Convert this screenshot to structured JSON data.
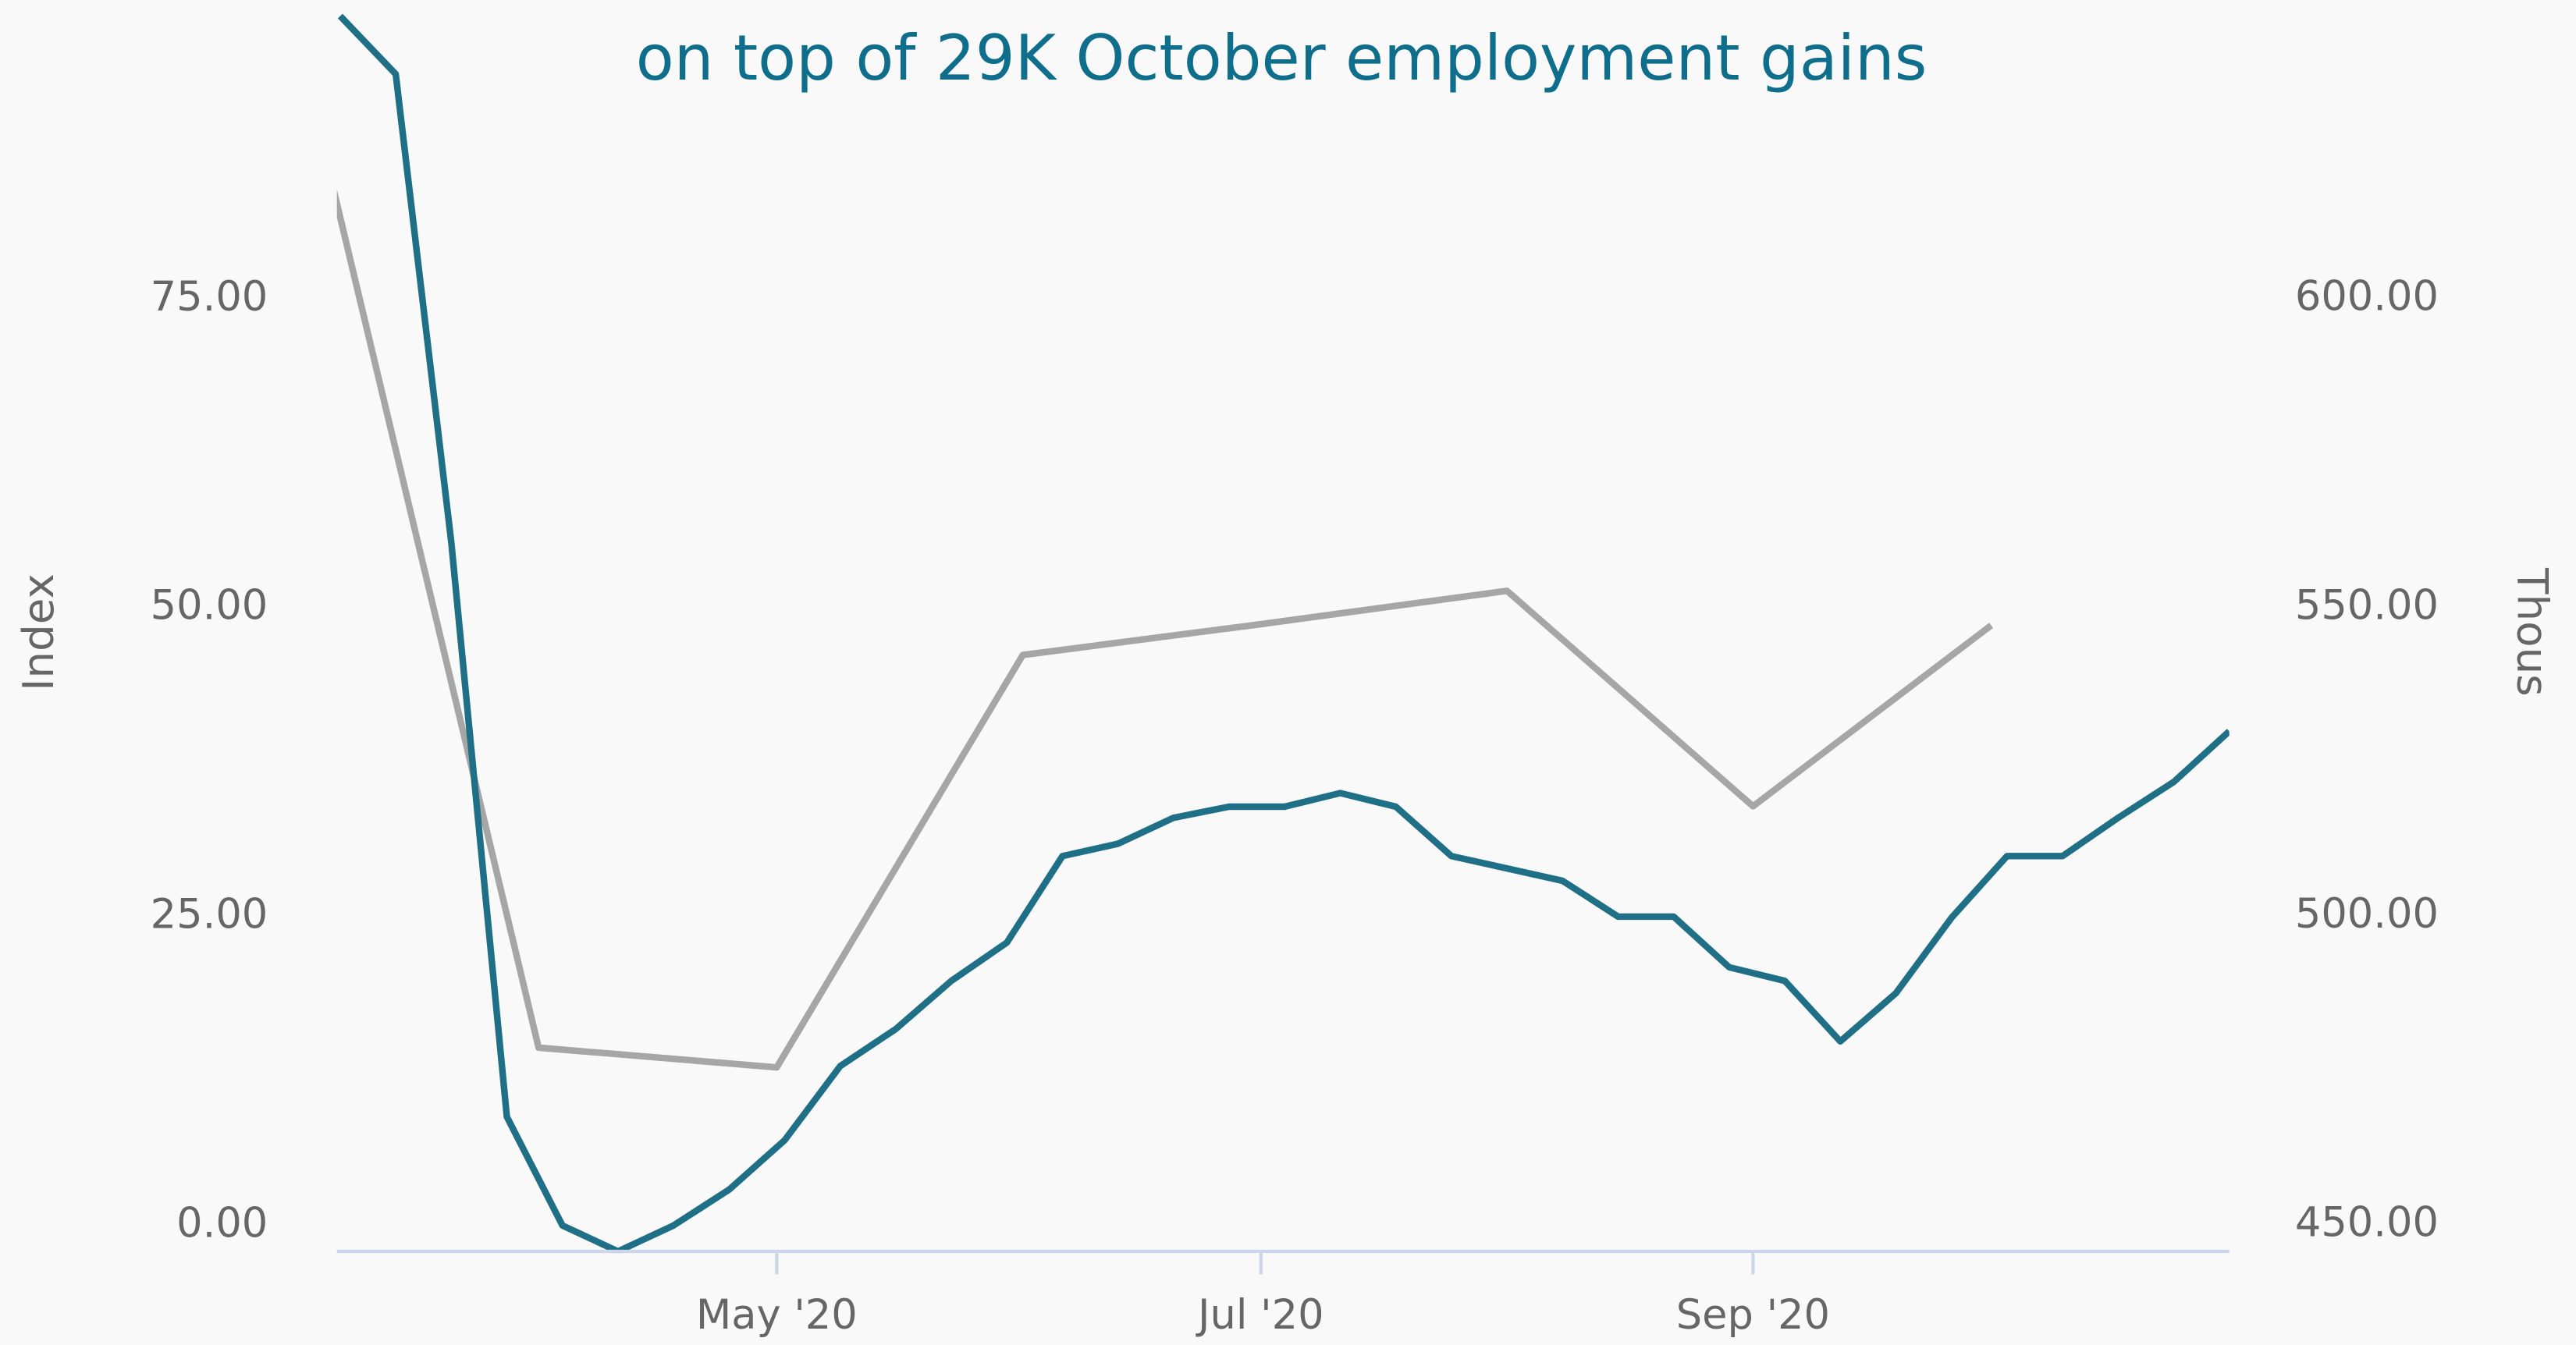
{
  "chart_data": {
    "type": "line",
    "title": "on top of 29K  October employment gains",
    "ylabel": "Index",
    "y2label": "Thous",
    "xlim": [
      "2020-03-07",
      "2020-10-31"
    ],
    "xticks": [
      {
        "value": "2020-05-01",
        "label": "May '20"
      },
      {
        "value": "2020-07-01",
        "label": "Jul '20"
      },
      {
        "value": "2020-09-01",
        "label": "Sep '20"
      }
    ],
    "ylim": [
      -2.1,
      99.2
    ],
    "yticks": [
      {
        "value": 0,
        "label": "0.00"
      },
      {
        "value": 25,
        "label": "25.00"
      },
      {
        "value": 50,
        "label": "50.00"
      },
      {
        "value": 75,
        "label": "75.00"
      }
    ],
    "y2lim": [
      445.7,
      648.4
    ],
    "y2ticks": [
      {
        "value": 450,
        "label": "450.00"
      },
      {
        "value": 500,
        "label": "500.00"
      },
      {
        "value": 550,
        "label": "550.00"
      },
      {
        "value": 600,
        "label": "600.00"
      }
    ],
    "series": [
      {
        "color": "#a6a6a6",
        "axis": "y2",
        "x": [
          "2020-03-01",
          "2020-04-01",
          "2020-05-01",
          "2020-06-01",
          "2020-07-01",
          "2020-08-01",
          "2020-09-01",
          "2020-10-01"
        ],
        "values": [
          645.5,
          478.7,
          475.5,
          542.3,
          547.3,
          552.7,
          517.8,
          547.1
        ]
      },
      {
        "color": "#1f6f86",
        "axis": "y",
        "x": [
          "2020-03-07",
          "2020-03-14",
          "2020-03-21",
          "2020-03-28",
          "2020-04-04",
          "2020-04-11",
          "2020-04-18",
          "2020-04-25",
          "2020-05-02",
          "2020-05-09",
          "2020-05-16",
          "2020-05-23",
          "2020-05-30",
          "2020-06-06",
          "2020-06-13",
          "2020-06-20",
          "2020-06-27",
          "2020-07-04",
          "2020-07-11",
          "2020-07-18",
          "2020-07-25",
          "2020-08-01",
          "2020-08-08",
          "2020-08-15",
          "2020-08-22",
          "2020-08-29",
          "2020-09-05",
          "2020-09-12",
          "2020-09-19",
          "2020-09-26",
          "2020-10-03",
          "2020-10-10",
          "2020-10-17",
          "2020-10-24",
          "2020-10-31"
        ],
        "values": [
          97.9,
          93.2,
          55.3,
          8.8,
          0,
          -2.1,
          0,
          2.9,
          6.9,
          12.9,
          15.9,
          19.8,
          22.9,
          29.9,
          30.9,
          33.0,
          33.9,
          33.9,
          35.0,
          33.9,
          29.9,
          28.9,
          27.9,
          25.0,
          25.0,
          20.9,
          19.8,
          14.9,
          18.8,
          24.9,
          29.9,
          29.9,
          33.0,
          35.9,
          40.0
        ]
      }
    ]
  }
}
